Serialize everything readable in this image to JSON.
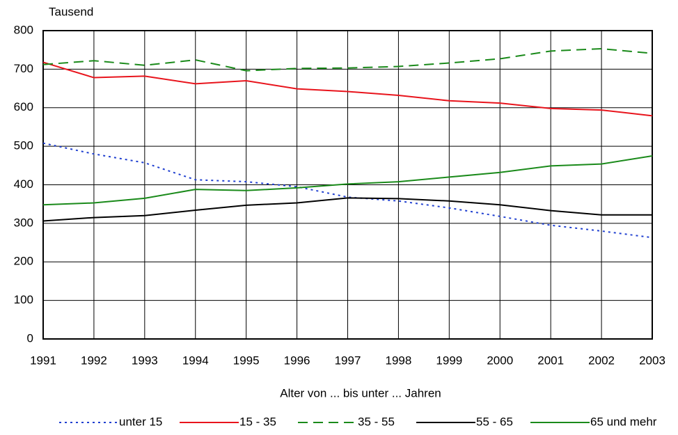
{
  "chart_data": {
    "type": "line",
    "y_label": "Tausend",
    "x_label": "Alter von ... bis unter ... Jahren",
    "x": [
      1991,
      1992,
      1993,
      1994,
      1995,
      1996,
      1997,
      1998,
      1999,
      2000,
      2001,
      2002,
      2003
    ],
    "xlim": [
      1991,
      2003
    ],
    "xticks": [
      1991,
      1992,
      1993,
      1994,
      1995,
      1996,
      1997,
      1998,
      1999,
      2000,
      2001,
      2002,
      2003
    ],
    "ylim": [
      0,
      800
    ],
    "yticks": [
      0,
      100,
      200,
      300,
      400,
      500,
      600,
      700,
      800
    ],
    "grid": true,
    "legend": "bottom",
    "series": [
      {
        "name": "unter 15",
        "color": "#1f3fd0",
        "dash": "dotted",
        "values": [
          508,
          480,
          457,
          413,
          408,
          395,
          368,
          358,
          340,
          318,
          295,
          280,
          263
        ]
      },
      {
        "name": "15 - 35",
        "color": "#e8141c",
        "dash": "solid",
        "values": [
          718,
          678,
          682,
          662,
          670,
          649,
          642,
          632,
          618,
          612,
          598,
          594,
          579
        ]
      },
      {
        "name": "35 - 55",
        "color": "#1a8a1a",
        "dash": "dashed",
        "values": [
          712,
          722,
          710,
          724,
          696,
          702,
          703,
          707,
          716,
          727,
          747,
          753,
          741
        ]
      },
      {
        "name": "55 - 65",
        "color": "#000000",
        "dash": "solid",
        "values": [
          306,
          315,
          320,
          334,
          347,
          353,
          366,
          364,
          358,
          348,
          333,
          322,
          322
        ]
      },
      {
        "name": "65 und mehr",
        "color": "#1a8a1a",
        "dash": "solid",
        "values": [
          348,
          353,
          365,
          388,
          385,
          392,
          402,
          408,
          420,
          432,
          449,
          454,
          475
        ]
      }
    ]
  }
}
